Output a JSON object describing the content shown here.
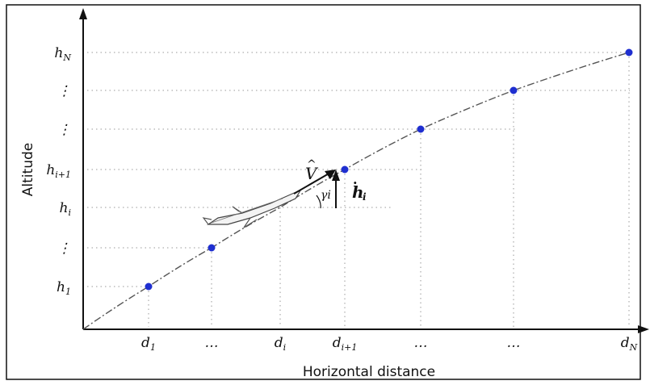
{
  "chart_data": {
    "type": "line",
    "xlabel": "Horizontal distance",
    "ylabel": "Altitude",
    "grid": true,
    "x_tick_labels": [
      "d1",
      "…",
      "di",
      "di+1",
      "…",
      "…",
      "dN"
    ],
    "y_tick_labels": [
      "h1",
      "⋮",
      "hi",
      "hi+1",
      "⋮",
      "⋮",
      "hN"
    ],
    "x": [
      1,
      2,
      3,
      4,
      5,
      6,
      7
    ],
    "y": [
      1,
      2,
      3,
      4,
      5,
      6,
      7
    ],
    "series": [
      {
        "name": "",
        "x": [
          1,
          2,
          4,
          5,
          6,
          7
        ],
        "values": [
          1,
          2,
          4,
          5,
          6,
          7
        ]
      }
    ],
    "colors": {
      "points": "#1f2fd0",
      "line": "#555555",
      "grid": "#999999",
      "axis": "#111111"
    },
    "annotations": {
      "velocity_label": "V",
      "velocity_hat": "^",
      "angle_label": "γi",
      "climb_label": "h",
      "climb_dot": ".",
      "climb_subscript": "i"
    }
  },
  "tick_subscripts": {
    "x": [
      "1",
      "",
      "i",
      "i+1",
      "",
      "",
      "N"
    ],
    "y": [
      "1",
      "",
      "i",
      "i+1",
      "",
      "",
      "N"
    ]
  }
}
